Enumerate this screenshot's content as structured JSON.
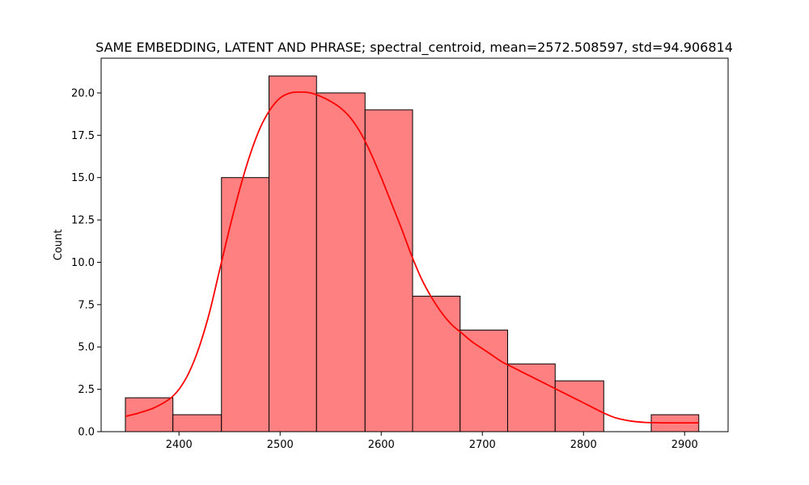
{
  "chart_data": {
    "type": "histogram",
    "title": "SAME EMBEDDING, LATENT AND PHRASE; spectral_centroid, mean=2572.508597, std=94.906814",
    "xlabel": "",
    "ylabel": "Count",
    "xlim": [
      2323,
      2943
    ],
    "ylim": [
      0,
      22.05
    ],
    "x_ticks": [
      2400,
      2500,
      2600,
      2700,
      2800,
      2900
    ],
    "y_ticks": [
      0.0,
      2.5,
      5.0,
      7.5,
      10.0,
      12.5,
      15.0,
      17.5,
      20.0
    ],
    "bins": [
      {
        "start": 2347,
        "end": 2394,
        "count": 2
      },
      {
        "start": 2394,
        "end": 2442,
        "count": 1
      },
      {
        "start": 2442,
        "end": 2489,
        "count": 15
      },
      {
        "start": 2489,
        "end": 2536,
        "count": 21
      },
      {
        "start": 2536,
        "end": 2584,
        "count": 20
      },
      {
        "start": 2584,
        "end": 2631,
        "count": 19
      },
      {
        "start": 2631,
        "end": 2678,
        "count": 8
      },
      {
        "start": 2678,
        "end": 2725,
        "count": 6
      },
      {
        "start": 2725,
        "end": 2772,
        "count": 4
      },
      {
        "start": 2772,
        "end": 2820,
        "count": 3
      },
      {
        "start": 2820,
        "end": 2867,
        "count": 0
      },
      {
        "start": 2867,
        "end": 2914,
        "count": 1
      }
    ],
    "kde": {
      "x": [
        2347,
        2360,
        2375,
        2390,
        2400,
        2410,
        2420,
        2430,
        2440,
        2450,
        2460,
        2470,
        2480,
        2490,
        2500,
        2510,
        2520,
        2530,
        2540,
        2550,
        2560,
        2570,
        2580,
        2590,
        2600,
        2610,
        2620,
        2630,
        2640,
        2650,
        2660,
        2670,
        2680,
        2690,
        2700,
        2710,
        2720,
        2730,
        2740,
        2750,
        2760,
        2770,
        2780,
        2790,
        2800,
        2810,
        2820,
        2830,
        2840,
        2850,
        2860,
        2870,
        2880,
        2890,
        2900,
        2914
      ],
      "y": [
        0.9,
        1.1,
        1.4,
        1.9,
        2.5,
        3.5,
        5.0,
        7.0,
        9.5,
        12.0,
        14.3,
        16.3,
        17.9,
        19.0,
        19.7,
        20.0,
        20.05,
        20.0,
        19.8,
        19.5,
        19.1,
        18.5,
        17.6,
        16.4,
        15.0,
        13.5,
        12.0,
        10.4,
        9.0,
        7.9,
        7.0,
        6.3,
        5.8,
        5.3,
        4.9,
        4.5,
        4.1,
        3.8,
        3.5,
        3.2,
        2.9,
        2.6,
        2.3,
        2.0,
        1.7,
        1.4,
        1.1,
        0.85,
        0.7,
        0.6,
        0.55,
        0.53,
        0.52,
        0.52,
        0.52,
        0.52
      ]
    },
    "colors": {
      "bar_fill": "#ff8080",
      "bar_edge": "#000000",
      "kde_line": "#ff0000"
    },
    "grid": false,
    "legend": "none"
  }
}
